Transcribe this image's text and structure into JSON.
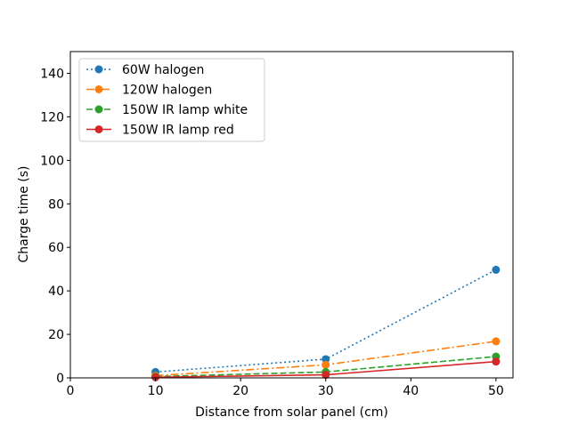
{
  "chart_data": {
    "type": "line",
    "xlabel": "Distance from solar panel (cm)",
    "ylabel": "Charge time (s)",
    "xlim": [
      0,
      52
    ],
    "ylim": [
      0,
      150
    ],
    "xticks": [
      0,
      10,
      20,
      30,
      40,
      50
    ],
    "yticks": [
      0,
      20,
      40,
      60,
      80,
      100,
      120,
      140
    ],
    "grid": false,
    "legend_position": "upper-left",
    "x": [
      10,
      30,
      50
    ],
    "series": [
      {
        "name": "60W halogen",
        "values": [
          2.7,
          8.6,
          49.7
        ],
        "color": "#1f77b4",
        "linestyle": "dotted"
      },
      {
        "name": "120W halogen",
        "values": [
          1.0,
          6.0,
          16.8
        ],
        "color": "#ff7f0e",
        "linestyle": "dashdot"
      },
      {
        "name": "150W IR lamp white",
        "values": [
          0.6,
          2.7,
          9.8
        ],
        "color": "#2ca02c",
        "linestyle": "dashed"
      },
      {
        "name": "150W IR lamp red",
        "values": [
          0.3,
          1.4,
          7.5
        ],
        "color": "#d62728",
        "linestyle": "solid"
      }
    ]
  }
}
